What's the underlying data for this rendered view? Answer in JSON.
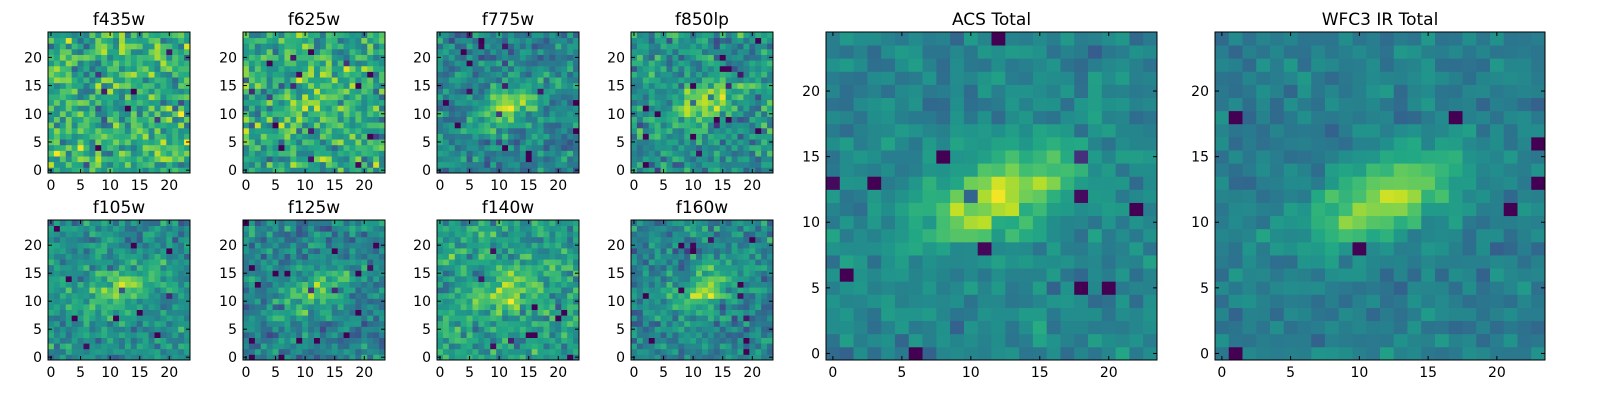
{
  "chart_data": [
    {
      "type": "heatmap",
      "title": "f435w",
      "grid": false,
      "source_seed": 11,
      "blob_strength": 0.0,
      "noise": 0.85,
      "base": 0.62,
      "x_ticks": [
        0,
        5,
        10,
        15,
        20
      ],
      "y_ticks": [
        0,
        5,
        10,
        15,
        20
      ],
      "x_tick_labels": [
        "0",
        "5",
        "10",
        "15",
        "20"
      ],
      "y_tick_labels": [
        "0",
        "5",
        "10",
        "15",
        "20"
      ]
    },
    {
      "type": "heatmap",
      "title": "f625w",
      "grid": false,
      "source_seed": 23,
      "blob_strength": 0.25,
      "noise": 0.8,
      "base": 0.6,
      "x_ticks": [
        0,
        5,
        10,
        15,
        20
      ],
      "y_ticks": [
        0,
        5,
        10,
        15,
        20
      ],
      "x_tick_labels": [
        "0",
        "5",
        "10",
        "15",
        "20"
      ],
      "y_tick_labels": [
        "0",
        "5",
        "10",
        "15",
        "20"
      ]
    },
    {
      "type": "heatmap",
      "title": "f775w",
      "grid": false,
      "source_seed": 37,
      "blob_strength": 0.75,
      "noise": 0.6,
      "base": 0.45,
      "x_ticks": [
        0,
        5,
        10,
        15,
        20
      ],
      "y_ticks": [
        0,
        5,
        10,
        15,
        20
      ],
      "x_tick_labels": [
        "0",
        "5",
        "10",
        "15",
        "20"
      ],
      "y_tick_labels": [
        "0",
        "5",
        "10",
        "15",
        "20"
      ]
    },
    {
      "type": "heatmap",
      "title": "f850lp",
      "grid": false,
      "source_seed": 41,
      "blob_strength": 0.7,
      "noise": 0.65,
      "base": 0.5,
      "x_ticks": [
        0,
        5,
        10,
        15,
        20
      ],
      "y_ticks": [
        0,
        5,
        10,
        15,
        20
      ],
      "x_tick_labels": [
        "0",
        "5",
        "10",
        "15",
        "20"
      ],
      "y_tick_labels": [
        "0",
        "5",
        "10",
        "15",
        "20"
      ]
    },
    {
      "type": "heatmap",
      "title": "f105w",
      "grid": false,
      "source_seed": 53,
      "blob_strength": 0.6,
      "noise": 0.55,
      "base": 0.5,
      "x_ticks": [
        0,
        5,
        10,
        15,
        20
      ],
      "y_ticks": [
        0,
        5,
        10,
        15,
        20
      ],
      "x_tick_labels": [
        "0",
        "5",
        "10",
        "15",
        "20"
      ],
      "y_tick_labels": [
        "0",
        "5",
        "10",
        "15",
        "20"
      ]
    },
    {
      "type": "heatmap",
      "title": "f125w",
      "grid": false,
      "source_seed": 67,
      "blob_strength": 0.65,
      "noise": 0.6,
      "base": 0.45,
      "x_ticks": [
        0,
        5,
        10,
        15,
        20
      ],
      "y_ticks": [
        0,
        5,
        10,
        15,
        20
      ],
      "x_tick_labels": [
        "0",
        "5",
        "10",
        "15",
        "20"
      ],
      "y_tick_labels": [
        "0",
        "5",
        "10",
        "15",
        "20"
      ]
    },
    {
      "type": "heatmap",
      "title": "f140w",
      "grid": false,
      "source_seed": 71,
      "blob_strength": 0.55,
      "noise": 0.6,
      "base": 0.55,
      "x_ticks": [
        0,
        5,
        10,
        15,
        20
      ],
      "y_ticks": [
        0,
        5,
        10,
        15,
        20
      ],
      "x_tick_labels": [
        "0",
        "5",
        "10",
        "15",
        "20"
      ],
      "y_tick_labels": [
        "0",
        "5",
        "10",
        "15",
        "20"
      ]
    },
    {
      "type": "heatmap",
      "title": "f160w",
      "grid": false,
      "source_seed": 89,
      "blob_strength": 0.7,
      "noise": 0.6,
      "base": 0.45,
      "x_ticks": [
        0,
        5,
        10,
        15,
        20
      ],
      "y_ticks": [
        0,
        5,
        10,
        15,
        20
      ],
      "x_tick_labels": [
        "0",
        "5",
        "10",
        "15",
        "20"
      ],
      "y_tick_labels": [
        "0",
        "5",
        "10",
        "15",
        "20"
      ]
    },
    {
      "type": "heatmap",
      "title": "ACS Total",
      "grid": false,
      "source_seed": 97,
      "blob_strength": 0.8,
      "noise": 0.35,
      "base": 0.45,
      "x_ticks": [
        0,
        5,
        10,
        15,
        20
      ],
      "y_ticks": [
        0,
        5,
        10,
        15,
        20
      ],
      "x_tick_labels": [
        "0",
        "5",
        "10",
        "15",
        "20"
      ],
      "y_tick_labels": [
        "0",
        "5",
        "10",
        "15",
        "20"
      ]
    },
    {
      "type": "heatmap",
      "title": "WFC3 IR Total",
      "grid": false,
      "source_seed": 103,
      "blob_strength": 0.8,
      "noise": 0.3,
      "base": 0.42,
      "x_ticks": [
        0,
        5,
        10,
        15,
        20
      ],
      "y_ticks": [
        0,
        5,
        10,
        15,
        20
      ],
      "x_tick_labels": [
        "0",
        "5",
        "10",
        "15",
        "20"
      ],
      "y_tick_labels": [
        "0",
        "5",
        "10",
        "15",
        "20"
      ]
    }
  ],
  "image_size": [
    24,
    25
  ],
  "colormap": "viridis",
  "source": {
    "center_x": 12,
    "center_y": 12,
    "elongation_angle_deg": 25
  }
}
